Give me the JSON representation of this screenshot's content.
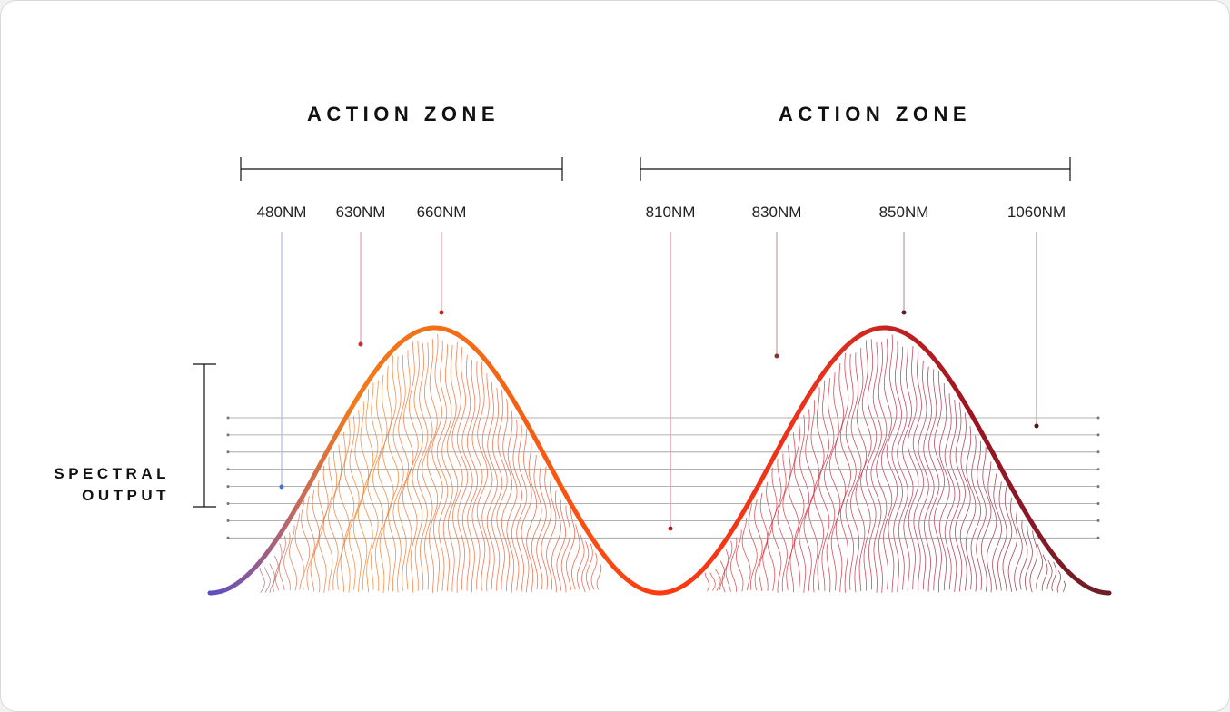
{
  "zones": [
    {
      "title": "ACTION ZONE"
    },
    {
      "title": "ACTION ZONE"
    }
  ],
  "wavelengths": [
    {
      "label": "480NM"
    },
    {
      "label": "630NM"
    },
    {
      "label": "660NM"
    },
    {
      "label": "810NM"
    },
    {
      "label": "830NM"
    },
    {
      "label": "850NM"
    },
    {
      "label": "1060NM"
    }
  ],
  "side_label": {
    "lines": [
      "SPECTRAL",
      "OUTPUT"
    ]
  }
}
